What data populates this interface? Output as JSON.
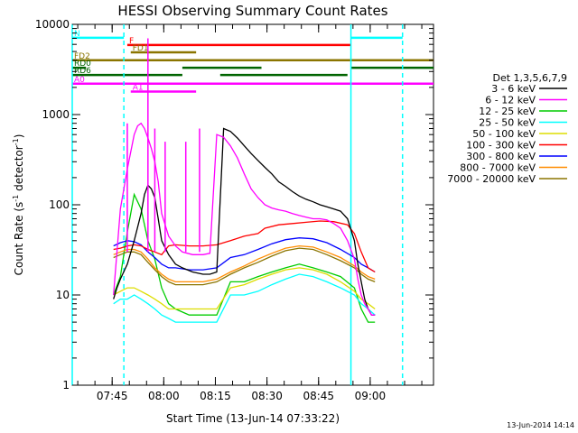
{
  "chart_data": {
    "type": "line",
    "title": "HESSI Observing Summary Count Rates",
    "xlabel": "Start Time (13-Jun-14 07:33:22)",
    "ylabel": "Count Rate (s",
    "ylabel_sup": "-1",
    "ylabel_tail": " detector",
    "ylabel_sup2": "-1",
    "ylabel_close": ")",
    "x_unit": "minutes after 07:33:22",
    "xlim": [
      0,
      105
    ],
    "ylim": [
      1,
      10000
    ],
    "yscale": "log",
    "x_ticks": [
      {
        "value": 11.6,
        "label": "07:45"
      },
      {
        "value": 26.6,
        "label": "08:00"
      },
      {
        "value": 41.6,
        "label": "08:15"
      },
      {
        "value": 56.6,
        "label": "08:30"
      },
      {
        "value": 71.6,
        "label": "08:45"
      },
      {
        "value": 86.6,
        "label": "09:00"
      }
    ],
    "y_ticks": [
      {
        "value": 1,
        "label": "1"
      },
      {
        "value": 10,
        "label": "10"
      },
      {
        "value": 100,
        "label": "100"
      },
      {
        "value": 1000,
        "label": "1000"
      },
      {
        "value": 10000,
        "label": "10000"
      }
    ],
    "legend_title": "Det 1,3,5,6,7,9",
    "legend_position": "right",
    "series": [
      {
        "name": "3 - 6 keV",
        "color": "#000000",
        "x": [
          12,
          13,
          14,
          16,
          18,
          20,
          21,
          22,
          23,
          24,
          25,
          26,
          28,
          30,
          32,
          35,
          38,
          40,
          42,
          44,
          46,
          48,
          50,
          52,
          54,
          56,
          58,
          60,
          62,
          64,
          66,
          68,
          70,
          72,
          74,
          76,
          78,
          80,
          82,
          83,
          84,
          85,
          86,
          87,
          88
        ],
        "y": [
          9,
          12,
          15,
          22,
          40,
          80,
          130,
          165,
          150,
          120,
          70,
          40,
          28,
          22,
          20,
          18,
          17,
          17,
          18,
          700,
          650,
          550,
          450,
          370,
          310,
          260,
          220,
          180,
          160,
          140,
          125,
          115,
          108,
          100,
          95,
          90,
          85,
          70,
          40,
          22,
          14,
          9,
          7,
          6,
          6
        ]
      },
      {
        "name": "6 - 12 keV",
        "color": "#ff00ff",
        "x": [
          12,
          13,
          14,
          16,
          18,
          19,
          20,
          21,
          22,
          23,
          24,
          25,
          26,
          28,
          30,
          32,
          35,
          38,
          40,
          42,
          44,
          46,
          48,
          50,
          52,
          54,
          56,
          58,
          60,
          62,
          64,
          66,
          68,
          70,
          72,
          74,
          76,
          78,
          80,
          82,
          83,
          84,
          85,
          86,
          87,
          88
        ],
        "y": [
          10,
          30,
          90,
          250,
          600,
          750,
          800,
          700,
          550,
          420,
          300,
          180,
          80,
          45,
          35,
          30,
          28,
          28,
          29,
          600,
          560,
          450,
          330,
          220,
          150,
          120,
          100,
          92,
          88,
          85,
          80,
          76,
          73,
          70,
          70,
          68,
          62,
          55,
          40,
          25,
          15,
          10,
          8,
          7,
          6,
          6
        ]
      },
      {
        "name": "12 - 25 keV",
        "color": "#00cc00",
        "x": [
          12,
          14,
          16,
          18,
          20,
          22,
          24,
          26,
          28,
          30,
          34,
          38,
          42,
          46,
          50,
          54,
          58,
          62,
          66,
          70,
          74,
          78,
          82,
          84,
          86,
          88
        ],
        "y": [
          10,
          16,
          50,
          130,
          90,
          40,
          25,
          12,
          8,
          7,
          6,
          6,
          6,
          14,
          14,
          16,
          18,
          20,
          22,
          20,
          18,
          16,
          12,
          7,
          5,
          5
        ]
      },
      {
        "name": "25 - 50 keV",
        "color": "#00ffff",
        "x": [
          12,
          14,
          16,
          18,
          20,
          22,
          24,
          26,
          28,
          30,
          34,
          38,
          42,
          46,
          50,
          54,
          58,
          62,
          66,
          70,
          74,
          78,
          82,
          84,
          86,
          88
        ],
        "y": [
          8,
          9,
          9,
          10,
          9,
          8,
          7,
          6,
          5.5,
          5,
          5,
          5,
          5,
          10,
          10,
          11,
          13,
          15,
          17,
          16,
          14,
          12,
          10,
          8,
          7,
          6
        ]
      },
      {
        "name": "50 - 100 keV",
        "color": "#dddd00",
        "x": [
          12,
          14,
          16,
          18,
          20,
          22,
          24,
          26,
          28,
          30,
          34,
          38,
          42,
          46,
          50,
          54,
          58,
          62,
          66,
          70,
          74,
          78,
          82,
          84,
          86,
          88
        ],
        "y": [
          10,
          11,
          12,
          12,
          11,
          10,
          9,
          8,
          7,
          7,
          7,
          7,
          7,
          12,
          13,
          15,
          17,
          19,
          20,
          19,
          17,
          14,
          11,
          9,
          8,
          7
        ]
      },
      {
        "name": "100 - 300 keV",
        "color": "#ff0000",
        "x": [
          12,
          14,
          16,
          18,
          20,
          22,
          24,
          26,
          28,
          30,
          34,
          38,
          42,
          46,
          50,
          54,
          56,
          60,
          64,
          68,
          72,
          76,
          80,
          82,
          84,
          86,
          88
        ],
        "y": [
          32,
          33,
          35,
          36,
          35,
          32,
          30,
          28,
          35,
          36,
          35,
          35,
          36,
          40,
          45,
          48,
          55,
          60,
          62,
          64,
          66,
          65,
          60,
          48,
          30,
          20,
          18
        ]
      },
      {
        "name": "300 - 800 keV",
        "color": "#0000ff",
        "x": [
          12,
          14,
          16,
          18,
          20,
          22,
          24,
          26,
          28,
          30,
          34,
          38,
          42,
          46,
          50,
          54,
          58,
          62,
          66,
          70,
          74,
          78,
          82,
          84,
          86,
          88
        ],
        "y": [
          35,
          38,
          40,
          39,
          36,
          30,
          26,
          22,
          20,
          20,
          19,
          19,
          20,
          26,
          28,
          32,
          37,
          41,
          43,
          42,
          38,
          32,
          26,
          22,
          20,
          18
        ]
      },
      {
        "name": "800 - 7000 keV",
        "color": "#ff8c00",
        "x": [
          12,
          14,
          16,
          18,
          20,
          22,
          24,
          26,
          28,
          30,
          34,
          38,
          42,
          46,
          50,
          54,
          58,
          62,
          66,
          70,
          74,
          78,
          82,
          84,
          86,
          88
        ],
        "y": [
          28,
          30,
          32,
          32,
          30,
          25,
          20,
          17,
          15,
          14,
          14,
          14,
          15,
          18,
          21,
          25,
          29,
          33,
          35,
          34,
          30,
          26,
          21,
          18,
          16,
          15
        ]
      },
      {
        "name": "7000 - 20000 keV",
        "color": "#8b7500",
        "x": [
          12,
          14,
          16,
          18,
          20,
          22,
          24,
          26,
          28,
          30,
          34,
          38,
          42,
          46,
          50,
          54,
          58,
          62,
          66,
          70,
          74,
          78,
          82,
          84,
          86,
          88
        ],
        "y": [
          26,
          28,
          30,
          30,
          28,
          23,
          19,
          16,
          14,
          13,
          13,
          13,
          14,
          17,
          20,
          23,
          27,
          31,
          33,
          32,
          28,
          24,
          20,
          17,
          15,
          14
        ]
      }
    ],
    "spikes": [
      {
        "x": 16,
        "y": 800,
        "color": "#ff00ff"
      },
      {
        "x": 22,
        "y": 7000,
        "color": "#ff00ff"
      },
      {
        "x": 24,
        "y": 700,
        "color": "#ff00ff"
      },
      {
        "x": 27,
        "y": 500,
        "color": "#ff00ff"
      },
      {
        "x": 33,
        "y": 500,
        "color": "#ff00ff"
      },
      {
        "x": 37,
        "y": 700,
        "color": "#ff00ff"
      }
    ],
    "vlines": [
      {
        "x": 0,
        "color": "#00ffff",
        "style": "solid"
      },
      {
        "x": 15,
        "color": "#00ffff",
        "style": "dashed"
      },
      {
        "x": 81,
        "color": "#00ffff",
        "style": "solid"
      },
      {
        "x": 96,
        "color": "#00ffff",
        "style": "dashed"
      }
    ],
    "flags": [
      {
        "label": "N",
        "color": "#00ffff",
        "y": 7100,
        "segments": [
          [
            0,
            15
          ],
          [
            81,
            96
          ]
        ]
      },
      {
        "label": "F",
        "color": "#ff0000",
        "y": 5900,
        "segments": [
          [
            16,
            81
          ]
        ]
      },
      {
        "label": "FD1",
        "color": "#8b7500",
        "y": 4900,
        "segments": [
          [
            17,
            36
          ]
        ]
      },
      {
        "label": "FD2",
        "color": "#8b7500",
        "y": 4000,
        "segments": [
          [
            0,
            105
          ]
        ]
      },
      {
        "label": "RD0",
        "color": "#006400",
        "y": 3300,
        "segments": [
          [
            0,
            4
          ],
          [
            32,
            55
          ],
          [
            81,
            105
          ]
        ]
      },
      {
        "label": "RD6",
        "color": "#006400",
        "y": 2750,
        "segments": [
          [
            0,
            32
          ],
          [
            43,
            80
          ]
        ]
      },
      {
        "label": "A0",
        "color": "#ff00ff",
        "y": 2200,
        "segments": [
          [
            0,
            105
          ]
        ]
      },
      {
        "label": "A1",
        "color": "#ff00ff",
        "y": 1800,
        "segments": [
          [
            17,
            36
          ]
        ]
      }
    ],
    "timestamp": "13-Jun-2014 14:14"
  }
}
